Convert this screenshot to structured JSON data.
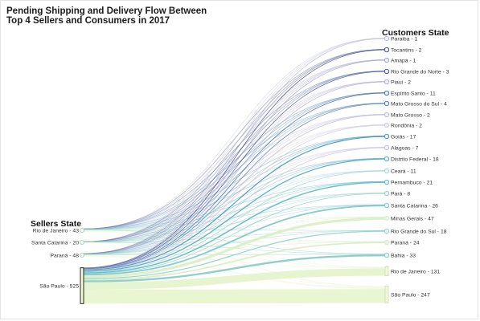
{
  "chart_data": {
    "type": "sankey",
    "title_line1": "Pending Shipping and Delivery Flow Between",
    "title_line2": "Top 4 Sellers and Consumers in 2017",
    "source_group_label": "Sellers State",
    "target_group_label": "Customers State",
    "sources": [
      {
        "name": "Rio de Janeiro",
        "value": 43,
        "label": "Rio de Janeiro - 43"
      },
      {
        "name": "Santa Catarina",
        "value": 20,
        "label": "Santa Catarina - 20"
      },
      {
        "name": "Paraná",
        "value": 48,
        "label": "Paraná - 48"
      },
      {
        "name": "São Paulo",
        "value": 525,
        "label": "São Paulo - 525"
      }
    ],
    "targets": [
      {
        "name": "Paraiba",
        "value": 1,
        "label": "Paraiba - 1",
        "color": "#b9b8d8"
      },
      {
        "name": "Tocantins",
        "value": 2,
        "label": "Tocantins - 2",
        "color": "#38407f"
      },
      {
        "name": "Amapá",
        "value": 1,
        "label": "Amapá - 1",
        "color": "#9c9cc8"
      },
      {
        "name": "Rio Grande do Norte",
        "value": 3,
        "label": "Rio Grande do Norte - 3",
        "color": "#3a4a93"
      },
      {
        "name": "Piaui",
        "value": 2,
        "label": "Piaui - 2",
        "color": "#a8a8cf"
      },
      {
        "name": "Espírito Santo",
        "value": 11,
        "label": "Espírito Santo - 11",
        "color": "#3466a8"
      },
      {
        "name": "Mato Grosso do Sul",
        "value": 4,
        "label": "Mato Grosso do Sul - 4",
        "color": "#4276b0"
      },
      {
        "name": "Mato Grosso",
        "value": 2,
        "label": "Mato Grosso - 2",
        "color": "#b7b2d6"
      },
      {
        "name": "Rondônia",
        "value": 2,
        "label": "Rondônia - 2",
        "color": "#c9c6e0"
      },
      {
        "name": "Goiás",
        "value": 17,
        "label": "Goiás - 17",
        "color": "#3b8fb2"
      },
      {
        "name": "Alagoas",
        "value": 7,
        "label": "Alagoas - 7",
        "color": "#c0bcdc"
      },
      {
        "name": "Distrito Federal",
        "value": 18,
        "label": "Distrito Federal - 18",
        "color": "#49a1bd"
      },
      {
        "name": "Ceará",
        "value": 11,
        "label": "Ceará - 11",
        "color": "#9fd1d7"
      },
      {
        "name": "Pernambuco",
        "value": 21,
        "label": "Pernambuco - 21",
        "color": "#55b3bd"
      },
      {
        "name": "Pará",
        "value": 8,
        "label": "Pará - 8",
        "color": "#8fcbc8"
      },
      {
        "name": "Santa Catarina",
        "value": 26,
        "label": "Santa Catarina - 26",
        "color": "#73c2c4"
      },
      {
        "name": "Minas Gerais",
        "value": 47,
        "label": "Minas Gerais - 47",
        "color": "#d8edc2"
      },
      {
        "name": "Rio Grande do Sul",
        "value": 18,
        "label": "Rio Grande do Sul - 18",
        "color": "#8acdc5"
      },
      {
        "name": "Paraná",
        "value": 24,
        "label": "Paraná - 24",
        "color": "#d2ebbf"
      },
      {
        "name": "Bahia",
        "value": 33,
        "label": "Bahia - 33",
        "color": "#7fc6c0"
      },
      {
        "name": "Rio de Janeiro",
        "value": 131,
        "label": "Rio de Janeiro - 131",
        "color": "#e3f2c8"
      },
      {
        "name": "São Paulo",
        "value": 247,
        "label": "São Paulo - 247",
        "color": "#e6f3ca"
      }
    ]
  }
}
